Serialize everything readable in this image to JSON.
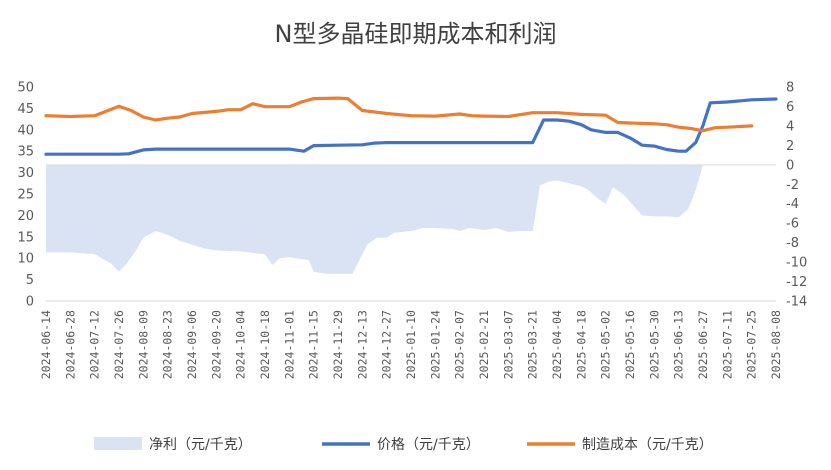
{
  "chart_data": {
    "type": "line",
    "title": "N型多晶硅即期成本和利润",
    "left_axis": {
      "min": 0,
      "max": 50,
      "step": 5
    },
    "right_axis": {
      "min": -14,
      "max": 8,
      "step": 2
    },
    "x_ticks": [
      "2024-06-14",
      "2024-06-28",
      "2024-07-12",
      "2024-07-26",
      "2024-08-09",
      "2024-08-23",
      "2024-09-06",
      "2024-09-20",
      "2024-10-04",
      "2024-10-18",
      "2024-11-01",
      "2024-11-15",
      "2024-11-29",
      "2024-12-13",
      "2024-12-27",
      "2025-01-10",
      "2025-01-24",
      "2025-02-07",
      "2025-02-21",
      "2025-03-07",
      "2025-03-21",
      "2025-04-04",
      "2025-04-18",
      "2025-05-02",
      "2025-05-16",
      "2025-05-30",
      "2025-06-13",
      "2025-06-27",
      "2025-07-11",
      "2025-07-25",
      "2025-08-08"
    ],
    "series": [
      {
        "name": "净利（元/千克）",
        "kind": "area",
        "axis": "right",
        "color": "#dae3f3",
        "points": [
          [
            0,
            -9
          ],
          [
            1,
            -9
          ],
          [
            2,
            -9.2
          ],
          [
            2.7,
            -10.2
          ],
          [
            3,
            -11
          ],
          [
            3.3,
            -10.2
          ],
          [
            3.7,
            -8.8
          ],
          [
            4,
            -7.5
          ],
          [
            4.5,
            -6.8
          ],
          [
            5,
            -7.2
          ],
          [
            5.5,
            -7.8
          ],
          [
            6,
            -8.2
          ],
          [
            6.5,
            -8.6
          ],
          [
            7,
            -8.8
          ],
          [
            8,
            -8.9
          ],
          [
            9,
            -9.2
          ],
          [
            9.3,
            -10.3
          ],
          [
            9.6,
            -9.6
          ],
          [
            10,
            -9.5
          ],
          [
            10.8,
            -9.8
          ],
          [
            11,
            -11
          ],
          [
            11.5,
            -11.2
          ],
          [
            12,
            -11.2
          ],
          [
            12.6,
            -11.2
          ],
          [
            13.2,
            -8.2
          ],
          [
            13.6,
            -7.5
          ],
          [
            14,
            -7.5
          ],
          [
            14.3,
            -7
          ],
          [
            15,
            -6.8
          ],
          [
            15.5,
            -6.5
          ],
          [
            16,
            -6.5
          ],
          [
            16.7,
            -6.6
          ],
          [
            17,
            -6.8
          ],
          [
            17.4,
            -6.5
          ],
          [
            18,
            -6.7
          ],
          [
            18.5,
            -6.5
          ],
          [
            19,
            -6.9
          ],
          [
            19.5,
            -6.8
          ],
          [
            20,
            -6.8
          ],
          [
            20.3,
            -2.1
          ],
          [
            20.7,
            -1.7
          ],
          [
            21,
            -1.6
          ],
          [
            21.5,
            -1.9
          ],
          [
            22,
            -2.2
          ],
          [
            22.3,
            -2.6
          ],
          [
            22.7,
            -3.5
          ],
          [
            23,
            -4
          ],
          [
            23.3,
            -2.3
          ],
          [
            23.7,
            -3
          ],
          [
            24,
            -3.8
          ],
          [
            24.5,
            -5.2
          ],
          [
            25,
            -5.3
          ],
          [
            25.5,
            -5.3
          ],
          [
            26,
            -5.4
          ],
          [
            26.4,
            -4.5
          ],
          [
            26.7,
            -2.6
          ],
          [
            27,
            0
          ],
          [
            27.4,
            0
          ],
          [
            28,
            0
          ],
          [
            29,
            0
          ],
          [
            30,
            0
          ]
        ]
      },
      {
        "name": "价格（元/千克）",
        "kind": "line",
        "axis": "left",
        "color": "#4472c4",
        "points": [
          [
            0,
            34.3
          ],
          [
            1,
            34.3
          ],
          [
            2,
            34.3
          ],
          [
            3,
            34.3
          ],
          [
            3.4,
            34.4
          ],
          [
            4,
            35.3
          ],
          [
            4.5,
            35.5
          ],
          [
            5,
            35.5
          ],
          [
            6,
            35.5
          ],
          [
            7,
            35.5
          ],
          [
            8,
            35.5
          ],
          [
            9,
            35.5
          ],
          [
            10,
            35.5
          ],
          [
            10.6,
            35.0
          ],
          [
            11,
            36.3
          ],
          [
            12,
            36.4
          ],
          [
            13,
            36.5
          ],
          [
            13.5,
            36.9
          ],
          [
            14,
            37
          ],
          [
            15,
            37
          ],
          [
            16,
            37
          ],
          [
            17,
            37
          ],
          [
            18,
            37
          ],
          [
            19,
            37
          ],
          [
            20,
            37
          ],
          [
            20.45,
            42.3
          ],
          [
            21,
            42.3
          ],
          [
            21.5,
            42.0
          ],
          [
            22,
            41.2
          ],
          [
            22.4,
            40
          ],
          [
            23,
            39.4
          ],
          [
            23.5,
            39.4
          ],
          [
            24,
            38.1
          ],
          [
            24.5,
            36.4
          ],
          [
            25,
            36.2
          ],
          [
            25.5,
            35.4
          ],
          [
            26,
            35.0
          ],
          [
            26.3,
            35.0
          ],
          [
            26.7,
            37
          ],
          [
            27,
            41
          ],
          [
            27.3,
            46.3
          ],
          [
            28,
            46.5
          ],
          [
            29,
            47
          ],
          [
            30,
            47.2
          ]
        ]
      },
      {
        "name": "制造成本（元/千克）",
        "kind": "line",
        "axis": "left",
        "color": "#ed7d31",
        "points": [
          [
            0,
            43.3
          ],
          [
            1,
            43.1
          ],
          [
            2,
            43.3
          ],
          [
            3,
            45.5
          ],
          [
            3.5,
            44.5
          ],
          [
            4,
            43
          ],
          [
            4.5,
            42.3
          ],
          [
            5,
            42.7
          ],
          [
            5.5,
            43
          ],
          [
            6,
            43.8
          ],
          [
            7,
            44.3
          ],
          [
            7.5,
            44.7
          ],
          [
            8,
            44.7
          ],
          [
            8.5,
            46.1
          ],
          [
            9,
            45.4
          ],
          [
            10,
            45.4
          ],
          [
            10.5,
            46.5
          ],
          [
            11,
            47.3
          ],
          [
            12,
            47.4
          ],
          [
            12.4,
            47.3
          ],
          [
            13,
            44.5
          ],
          [
            14,
            43.8
          ],
          [
            15,
            43.3
          ],
          [
            16,
            43.2
          ],
          [
            17,
            43.7
          ],
          [
            17.5,
            43.3
          ],
          [
            18,
            43.2
          ],
          [
            19,
            43.1
          ],
          [
            20,
            44
          ],
          [
            21,
            44
          ],
          [
            22,
            43.6
          ],
          [
            23,
            43.4
          ],
          [
            23.5,
            41.7
          ],
          [
            24,
            41.6
          ],
          [
            24.5,
            41.5
          ],
          [
            25,
            41.4
          ],
          [
            25.5,
            41.2
          ],
          [
            26,
            40.6
          ],
          [
            26.5,
            40.3
          ],
          [
            27,
            39.8
          ],
          [
            27.5,
            40.5
          ],
          [
            28,
            40.6
          ],
          [
            29,
            40.9
          ]
        ]
      }
    ],
    "legend_position": "bottom",
    "grid": false
  }
}
